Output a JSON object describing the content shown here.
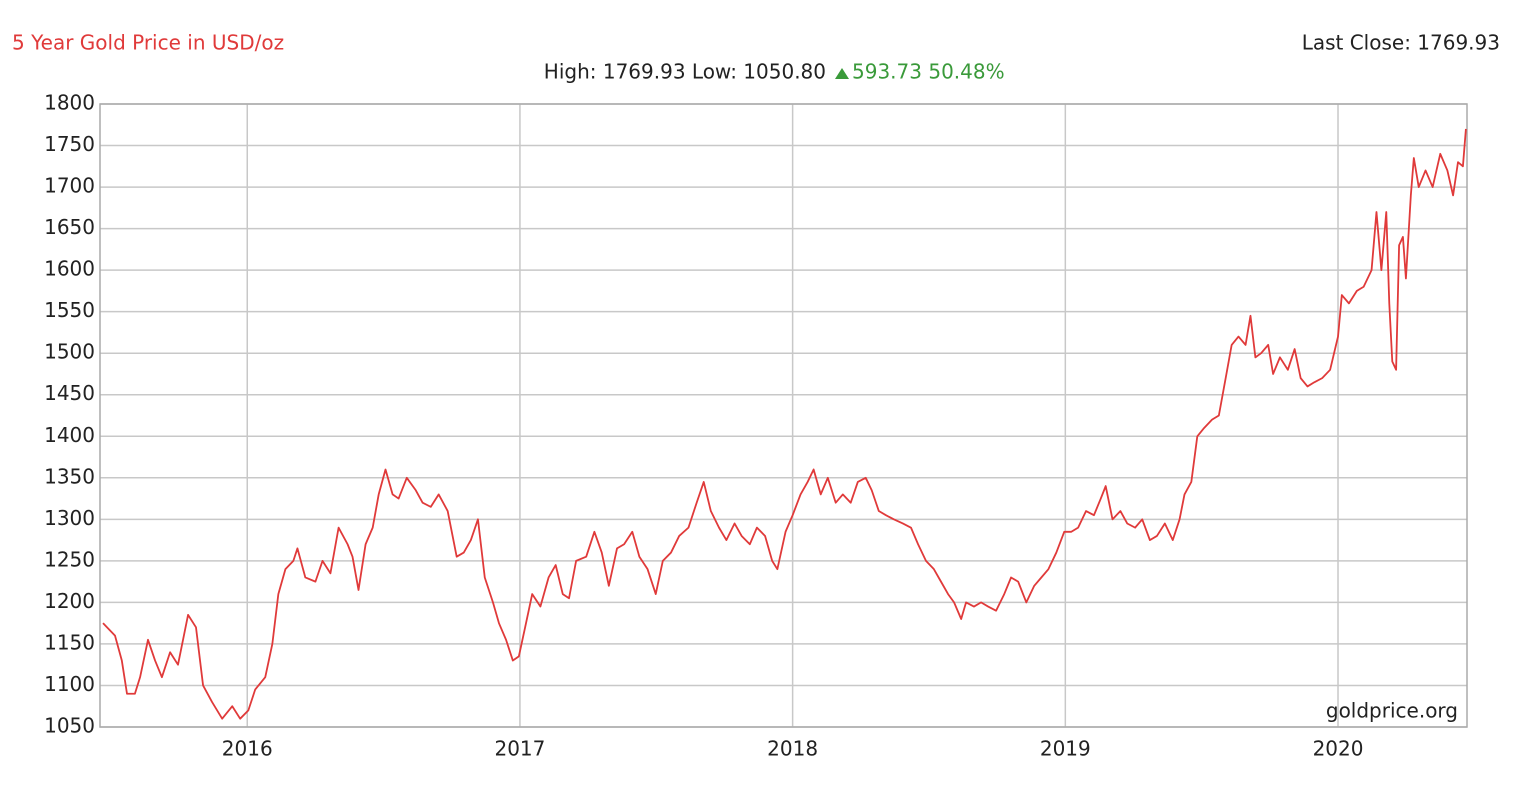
{
  "chart_data": {
    "type": "line",
    "title": "5 Year Gold Price in USD/oz",
    "last_close": "Last Close: 1769.93",
    "subtitle": "High: 1769.93 Low: 1050.80",
    "change": "593.73 50.48%",
    "watermark": "goldprice.org",
    "color": "#e03a3a",
    "grid": true,
    "xlim": [
      2015.46,
      2020.473
    ],
    "xticks": [
      2016,
      2017,
      2018,
      2019,
      2020
    ],
    "ylim": [
      1050,
      1800
    ],
    "yticks": [
      1050,
      1100,
      1150,
      1200,
      1250,
      1300,
      1350,
      1400,
      1450,
      1500,
      1550,
      1600,
      1650,
      1700,
      1750,
      1800
    ],
    "x": [
      2015.471,
      2015.515,
      2015.54,
      2015.559,
      2015.588,
      2015.607,
      2015.636,
      2015.662,
      2015.687,
      2015.717,
      2015.746,
      2015.783,
      2015.812,
      2015.838,
      2015.871,
      2015.908,
      2015.945,
      2015.974,
      2016.004,
      2016.029,
      2016.066,
      2016.092,
      2016.114,
      2016.14,
      2016.169,
      2016.184,
      2016.213,
      2016.25,
      2016.276,
      2016.305,
      2016.335,
      2016.368,
      2016.386,
      2016.408,
      2016.434,
      2016.46,
      2016.482,
      2016.507,
      2016.533,
      2016.555,
      2016.585,
      2016.618,
      2016.643,
      2016.673,
      2016.702,
      2016.735,
      2016.768,
      2016.794,
      2016.82,
      2016.846,
      2016.871,
      2016.901,
      2016.923,
      2016.949,
      2016.974,
      2016.996,
      2017.019,
      2017.045,
      2017.075,
      2017.105,
      2017.131,
      2017.157,
      2017.18,
      2017.206,
      2017.243,
      2017.273,
      2017.3,
      2017.326,
      2017.356,
      2017.382,
      2017.412,
      2017.438,
      2017.468,
      2017.498,
      2017.524,
      2017.554,
      2017.584,
      2017.618,
      2017.648,
      2017.674,
      2017.7,
      2017.73,
      2017.757,
      2017.787,
      2017.813,
      2017.843,
      2017.869,
      2017.899,
      2017.925,
      2017.944,
      2017.974,
      2018.0,
      2018.029,
      2018.055,
      2018.077,
      2018.103,
      2018.129,
      2018.158,
      2018.184,
      2018.213,
      2018.239,
      2018.268,
      2018.29,
      2018.316,
      2018.342,
      2018.371,
      2018.404,
      2018.434,
      2018.46,
      2018.489,
      2018.518,
      2018.544,
      2018.57,
      2018.592,
      2018.618,
      2018.636,
      2018.665,
      2018.691,
      2018.717,
      2018.746,
      2018.776,
      2018.801,
      2018.827,
      2018.857,
      2018.886,
      2018.912,
      2018.938,
      2018.967,
      2018.996,
      2019.022,
      2019.047,
      2019.076,
      2019.105,
      2019.13,
      2019.148,
      2019.173,
      2019.202,
      2019.227,
      2019.256,
      2019.282,
      2019.31,
      2019.336,
      2019.365,
      2019.394,
      2019.419,
      2019.437,
      2019.462,
      2019.484,
      2019.509,
      2019.538,
      2019.563,
      2019.588,
      2019.61,
      2019.635,
      2019.661,
      2019.679,
      2019.697,
      2019.718,
      2019.744,
      2019.762,
      2019.787,
      2019.816,
      2019.841,
      2019.863,
      2019.888,
      2019.913,
      2019.942,
      2019.971,
      2020.0,
      2020.014,
      2020.04,
      2020.069,
      2020.094,
      2020.123,
      2020.141,
      2020.159,
      2020.177,
      2020.188,
      2020.199,
      2020.213,
      2020.224,
      2020.238,
      2020.249,
      2020.267,
      2020.278,
      2020.296,
      2020.321,
      2020.347,
      2020.375,
      2020.401,
      2020.422,
      2020.44,
      2020.458,
      2020.469
    ],
    "values": [
      1175,
      1160,
      1130,
      1090,
      1090,
      1110,
      1155,
      1130,
      1110,
      1140,
      1125,
      1185,
      1170,
      1100,
      1080,
      1060,
      1075,
      1060,
      1070,
      1095,
      1110,
      1150,
      1210,
      1240,
      1250,
      1265,
      1230,
      1225,
      1250,
      1235,
      1290,
      1270,
      1255,
      1215,
      1270,
      1290,
      1330,
      1360,
      1330,
      1325,
      1350,
      1335,
      1320,
      1315,
      1330,
      1310,
      1255,
      1260,
      1275,
      1300,
      1230,
      1200,
      1175,
      1155,
      1130,
      1135,
      1170,
      1210,
      1195,
      1230,
      1245,
      1210,
      1205,
      1250,
      1255,
      1285,
      1260,
      1220,
      1265,
      1270,
      1285,
      1255,
      1240,
      1210,
      1250,
      1260,
      1280,
      1290,
      1320,
      1345,
      1310,
      1290,
      1275,
      1295,
      1280,
      1270,
      1290,
      1280,
      1250,
      1240,
      1285,
      1305,
      1330,
      1345,
      1360,
      1330,
      1350,
      1320,
      1330,
      1320,
      1345,
      1350,
      1335,
      1310,
      1305,
      1300,
      1295,
      1290,
      1270,
      1250,
      1240,
      1225,
      1210,
      1200,
      1180,
      1200,
      1195,
      1200,
      1195,
      1190,
      1210,
      1230,
      1225,
      1200,
      1220,
      1230,
      1240,
      1260,
      1285,
      1285,
      1290,
      1310,
      1305,
      1325,
      1340,
      1300,
      1310,
      1295,
      1290,
      1300,
      1275,
      1280,
      1295,
      1275,
      1300,
      1330,
      1345,
      1400,
      1410,
      1420,
      1425,
      1470,
      1510,
      1520,
      1510,
      1545,
      1495,
      1500,
      1510,
      1475,
      1495,
      1480,
      1505,
      1470,
      1460,
      1465,
      1470,
      1480,
      1520,
      1570,
      1560,
      1575,
      1580,
      1600,
      1670,
      1600,
      1670,
      1560,
      1490,
      1480,
      1630,
      1640,
      1590,
      1690,
      1735,
      1700,
      1720,
      1700,
      1740,
      1720,
      1690,
      1730,
      1725,
      1769.93
    ]
  }
}
